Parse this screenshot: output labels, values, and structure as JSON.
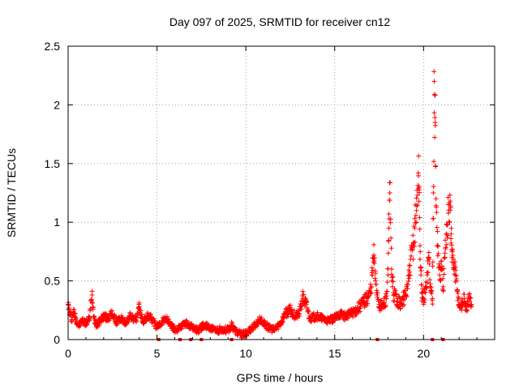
{
  "chart_data": {
    "type": "scatter",
    "title": "Day 097 of 2025, SRMTID for receiver cn12",
    "xlabel": "GPS time / hours",
    "ylabel": "SRMTID / TECUs",
    "xlim": [
      0,
      24
    ],
    "ylim": [
      0,
      2.5
    ],
    "x_ticks": [
      0,
      5,
      10,
      15,
      20
    ],
    "x_tick_labels": [
      "0",
      "5",
      "10",
      "15",
      "20"
    ],
    "y_ticks": [
      0,
      0.5,
      1,
      1.5,
      2,
      2.5
    ],
    "y_tick_labels": [
      "0",
      "0.5",
      "1",
      "1.5",
      "2",
      "2.5"
    ],
    "grid": true,
    "marker": "+",
    "color": "#ff0000",
    "series": [
      {
        "name": "SRMTID",
        "x": [
          0.0,
          0.1,
          0.2,
          0.3,
          0.4,
          0.5,
          0.6,
          0.8,
          1.0,
          1.2,
          1.35,
          1.45,
          1.6,
          1.8,
          2.0,
          2.2,
          2.5,
          2.7,
          3.0,
          3.2,
          3.5,
          3.8,
          4.0,
          4.2,
          4.5,
          4.7,
          5.0,
          5.2,
          5.5,
          5.8,
          6.0,
          6.3,
          6.6,
          7.0,
          7.3,
          7.6,
          8.0,
          8.3,
          8.6,
          9.0,
          9.2,
          9.5,
          9.8,
          10.0,
          10.2,
          10.5,
          10.8,
          11.0,
          11.3,
          11.6,
          12.0,
          12.2,
          12.5,
          12.8,
          13.0,
          13.2,
          13.4,
          13.6,
          14.0,
          14.3,
          14.6,
          15.0,
          15.3,
          15.6,
          15.9,
          16.2,
          16.5,
          16.8,
          17.0,
          17.1,
          17.2,
          17.3,
          17.5,
          17.7,
          17.9,
          18.0,
          18.05,
          18.1,
          18.2,
          18.3,
          18.5,
          18.7,
          19.0,
          19.2,
          19.4,
          19.5,
          19.6,
          19.7,
          19.75,
          19.8,
          19.85,
          19.9,
          20.0,
          20.1,
          20.2,
          20.3,
          20.4,
          20.5,
          20.55,
          20.6,
          20.65,
          20.7,
          20.8,
          20.9,
          21.0,
          21.1,
          21.2,
          21.3,
          21.4,
          21.5,
          21.55,
          21.6,
          21.7,
          21.8,
          21.9,
          22.0,
          22.1,
          22.2,
          22.3,
          22.4,
          22.5,
          22.6,
          22.7
        ],
        "y": [
          0.3,
          0.22,
          0.17,
          0.24,
          0.2,
          0.15,
          0.12,
          0.16,
          0.14,
          0.18,
          0.38,
          0.2,
          0.12,
          0.16,
          0.2,
          0.18,
          0.22,
          0.15,
          0.18,
          0.14,
          0.2,
          0.16,
          0.28,
          0.15,
          0.2,
          0.18,
          0.1,
          0.14,
          0.18,
          0.12,
          0.08,
          0.1,
          0.14,
          0.1,
          0.08,
          0.12,
          0.1,
          0.07,
          0.09,
          0.08,
          0.12,
          0.06,
          0.04,
          0.05,
          0.08,
          0.12,
          0.17,
          0.14,
          0.1,
          0.08,
          0.15,
          0.22,
          0.25,
          0.2,
          0.22,
          0.35,
          0.3,
          0.18,
          0.2,
          0.18,
          0.16,
          0.18,
          0.22,
          0.2,
          0.22,
          0.25,
          0.3,
          0.35,
          0.4,
          0.55,
          0.72,
          0.5,
          0.3,
          0.28,
          0.35,
          0.55,
          0.95,
          1.25,
          0.6,
          0.4,
          0.35,
          0.3,
          0.38,
          0.55,
          0.8,
          0.95,
          1.1,
          1.42,
          1.3,
          0.8,
          0.55,
          0.4,
          0.35,
          0.4,
          0.55,
          0.7,
          0.42,
          0.35,
          1.25,
          2.2,
          1.85,
          1.2,
          0.8,
          0.55,
          0.6,
          0.45,
          0.7,
          0.9,
          1.15,
          1.18,
          0.9,
          0.7,
          0.65,
          0.55,
          0.42,
          0.3,
          0.28,
          0.32,
          0.35,
          0.25,
          0.3,
          0.36,
          0.3
        ],
        "y_axis_markers_x": [
          5.1,
          6.3,
          6.9,
          7.5,
          9.2,
          17.4,
          20.5,
          21.1
        ]
      }
    ]
  }
}
